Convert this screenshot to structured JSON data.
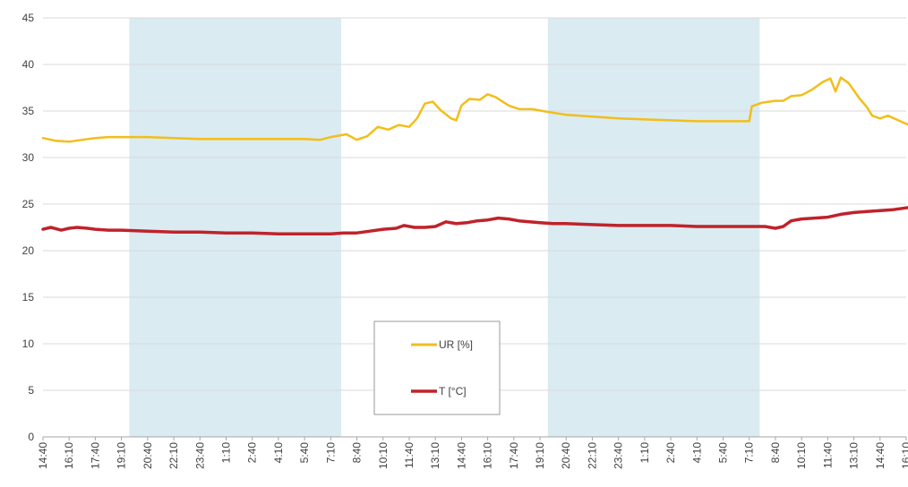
{
  "chart_data": {
    "type": "line",
    "xlabel": "",
    "ylabel": "",
    "ylim": [
      0,
      45
    ],
    "yticks": [
      0,
      5,
      10,
      15,
      20,
      25,
      30,
      35,
      40,
      45
    ],
    "grid": true,
    "legend_placement": "center-bottom",
    "x_tick_labels": [
      "14:40",
      "16:10",
      "17:40",
      "19:10",
      "20:40",
      "22:10",
      "23:40",
      "1:10",
      "2:40",
      "4:10",
      "5:40",
      "7:10",
      "8:40",
      "10:10",
      "11:40",
      "13:10",
      "14:40",
      "16:10",
      "17:40",
      "19:10",
      "20:40",
      "22:10",
      "23:40",
      "1:10",
      "2:40",
      "4:10",
      "5:40",
      "7:10",
      "8:40",
      "10:10",
      "11:40",
      "13:10",
      "14:40",
      "16:10"
    ],
    "night_bands": [
      {
        "from_tick": 3.3,
        "to_tick": 11.4
      },
      {
        "from_tick": 19.3,
        "to_tick": 27.4
      }
    ],
    "series": [
      {
        "name": "UR [%]",
        "color": "#F2BE1A",
        "points": [
          [
            0,
            32.1
          ],
          [
            0.5,
            31.8
          ],
          [
            1,
            31.7
          ],
          [
            1.5,
            31.9
          ],
          [
            2,
            32.1
          ],
          [
            2.5,
            32.2
          ],
          [
            3,
            32.2
          ],
          [
            4,
            32.2
          ],
          [
            5,
            32.1
          ],
          [
            6,
            32.0
          ],
          [
            7,
            32.0
          ],
          [
            8,
            32.0
          ],
          [
            9,
            32.0
          ],
          [
            10,
            32.0
          ],
          [
            10.6,
            31.9
          ],
          [
            11,
            32.2
          ],
          [
            11.6,
            32.5
          ],
          [
            12,
            31.9
          ],
          [
            12.4,
            32.3
          ],
          [
            12.8,
            33.3
          ],
          [
            13.2,
            33.0
          ],
          [
            13.6,
            33.5
          ],
          [
            14,
            33.3
          ],
          [
            14.3,
            34.2
          ],
          [
            14.6,
            35.8
          ],
          [
            14.9,
            36.0
          ],
          [
            15.2,
            35.1
          ],
          [
            15.6,
            34.2
          ],
          [
            15.8,
            34.0
          ],
          [
            16,
            35.6
          ],
          [
            16.3,
            36.3
          ],
          [
            16.7,
            36.2
          ],
          [
            17,
            36.8
          ],
          [
            17.3,
            36.5
          ],
          [
            17.8,
            35.6
          ],
          [
            18.2,
            35.2
          ],
          [
            18.7,
            35.2
          ],
          [
            19.3,
            34.9
          ],
          [
            20,
            34.6
          ],
          [
            21,
            34.4
          ],
          [
            22,
            34.2
          ],
          [
            23,
            34.1
          ],
          [
            24,
            34.0
          ],
          [
            25,
            33.9
          ],
          [
            26,
            33.9
          ],
          [
            27,
            33.9
          ],
          [
            27.1,
            35.5
          ],
          [
            27.5,
            35.9
          ],
          [
            28,
            36.1
          ],
          [
            28.3,
            36.1
          ],
          [
            28.6,
            36.6
          ],
          [
            29,
            36.7
          ],
          [
            29.4,
            37.3
          ],
          [
            29.8,
            38.1
          ],
          [
            30.1,
            38.5
          ],
          [
            30.3,
            37.1
          ],
          [
            30.5,
            38.6
          ],
          [
            30.8,
            38.0
          ],
          [
            31.2,
            36.4
          ],
          [
            31.5,
            35.4
          ],
          [
            31.7,
            34.5
          ],
          [
            32,
            34.2
          ],
          [
            32.3,
            34.5
          ],
          [
            32.7,
            34.0
          ],
          [
            33.1,
            33.5
          ],
          [
            33.4,
            32.7
          ],
          [
            33.7,
            31.8
          ],
          [
            34,
            31.7
          ]
        ]
      },
      {
        "name": "T [°C]",
        "color": "#C0222A",
        "points": [
          [
            0,
            22.3
          ],
          [
            0.3,
            22.5
          ],
          [
            0.7,
            22.2
          ],
          [
            1,
            22.4
          ],
          [
            1.3,
            22.5
          ],
          [
            1.7,
            22.4
          ],
          [
            2,
            22.3
          ],
          [
            2.5,
            22.2
          ],
          [
            3,
            22.2
          ],
          [
            4,
            22.1
          ],
          [
            5,
            22.0
          ],
          [
            6,
            22.0
          ],
          [
            7,
            21.9
          ],
          [
            8,
            21.9
          ],
          [
            9,
            21.8
          ],
          [
            10,
            21.8
          ],
          [
            11,
            21.8
          ],
          [
            11.5,
            21.9
          ],
          [
            12,
            21.9
          ],
          [
            12.5,
            22.1
          ],
          [
            13,
            22.3
          ],
          [
            13.5,
            22.4
          ],
          [
            13.8,
            22.7
          ],
          [
            14.2,
            22.5
          ],
          [
            14.6,
            22.5
          ],
          [
            15,
            22.6
          ],
          [
            15.4,
            23.1
          ],
          [
            15.8,
            22.9
          ],
          [
            16.2,
            23.0
          ],
          [
            16.6,
            23.2
          ],
          [
            17,
            23.3
          ],
          [
            17.4,
            23.5
          ],
          [
            17.8,
            23.4
          ],
          [
            18.2,
            23.2
          ],
          [
            18.6,
            23.1
          ],
          [
            19,
            23.0
          ],
          [
            19.5,
            22.9
          ],
          [
            20,
            22.9
          ],
          [
            21,
            22.8
          ],
          [
            22,
            22.7
          ],
          [
            23,
            22.7
          ],
          [
            24,
            22.7
          ],
          [
            25,
            22.6
          ],
          [
            26,
            22.6
          ],
          [
            27,
            22.6
          ],
          [
            27.6,
            22.6
          ],
          [
            28,
            22.4
          ],
          [
            28.3,
            22.6
          ],
          [
            28.6,
            23.2
          ],
          [
            29,
            23.4
          ],
          [
            29.5,
            23.5
          ],
          [
            30,
            23.6
          ],
          [
            30.5,
            23.9
          ],
          [
            31,
            24.1
          ],
          [
            31.5,
            24.2
          ],
          [
            32,
            24.3
          ],
          [
            32.5,
            24.4
          ],
          [
            33,
            24.6
          ],
          [
            33.5,
            24.8
          ],
          [
            34,
            25.2
          ]
        ]
      }
    ]
  }
}
